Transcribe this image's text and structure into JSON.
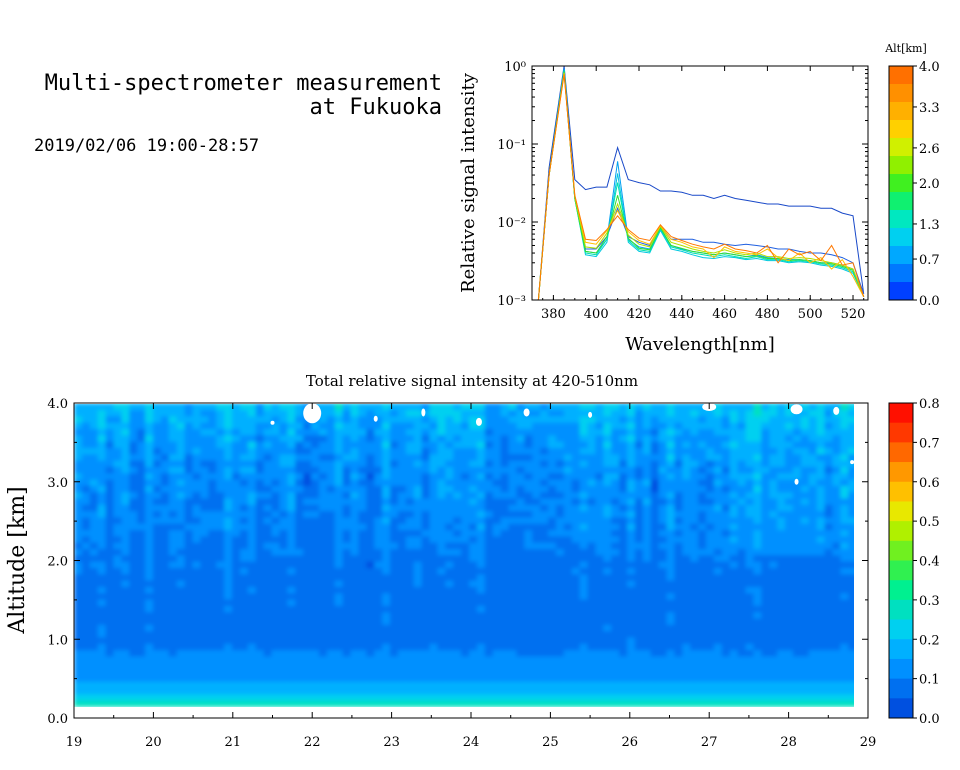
{
  "header": {
    "title_line1": "Multi-spectrometer measurement",
    "title_line2": "at Fukuoka",
    "timestamp": "2019/02/06 19:00-28:57"
  },
  "chart_data": [
    {
      "type": "line",
      "title": "",
      "xlabel": "Wavelength[nm]",
      "ylabel": "Relative signal intensity",
      "xlim": [
        370,
        527
      ],
      "ylim": [
        0.001,
        1
      ],
      "yscale": "log",
      "x_ticks": [
        "380",
        "400",
        "420",
        "440",
        "460",
        "480",
        "500",
        "520"
      ],
      "y_ticks": [
        "10⁰",
        "10⁻¹",
        "10⁻²",
        "10⁻³"
      ],
      "y_tick_values": [
        1,
        0.1,
        0.01,
        0.001
      ],
      "x": [
        373,
        378,
        385,
        390,
        395,
        400,
        405,
        410,
        415,
        420,
        425,
        430,
        435,
        440,
        445,
        450,
        455,
        460,
        465,
        470,
        475,
        480,
        485,
        490,
        495,
        500,
        505,
        510,
        515,
        520,
        525
      ],
      "colorbar": {
        "label": "Alt[km]",
        "ticks": [
          "4.0",
          "3.3",
          "2.6",
          "2.0",
          "1.3",
          "0.7",
          "0.0"
        ],
        "tick_values": [
          4.0,
          3.3,
          2.6,
          2.0,
          1.3,
          0.7,
          0.0
        ],
        "range": [
          0,
          4
        ],
        "colors": [
          "#0040ff",
          "#0078ff",
          "#00a8ff",
          "#00d0f0",
          "#00e8c0",
          "#10f070",
          "#40f020",
          "#90f000",
          "#d0f000",
          "#ffd000",
          "#ffb000",
          "#ff9000",
          "#ff7000"
        ]
      },
      "series": [
        {
          "altitude": 0.0,
          "color": "#1848c8",
          "values": [
            0.001,
            0.05,
            1.0,
            0.035,
            0.026,
            0.028,
            0.028,
            0.09,
            0.035,
            0.032,
            0.03,
            0.025,
            0.025,
            0.024,
            0.022,
            0.022,
            0.02,
            0.022,
            0.02,
            0.019,
            0.018,
            0.017,
            0.017,
            0.016,
            0.016,
            0.016,
            0.015,
            0.015,
            0.013,
            0.012,
            0.0012
          ]
        },
        {
          "altitude": 0.3,
          "color": "#2060e0",
          "values": [
            0.001,
            0.04,
            0.95,
            0.02,
            0.0045,
            0.0045,
            0.0065,
            0.015,
            0.0065,
            0.0055,
            0.005,
            0.009,
            0.006,
            0.006,
            0.006,
            0.0055,
            0.0055,
            0.0052,
            0.005,
            0.0052,
            0.005,
            0.0048,
            0.0045,
            0.0045,
            0.0042,
            0.004,
            0.004,
            0.0038,
            0.0035,
            0.003,
            0.0012
          ]
        },
        {
          "altitude": 0.7,
          "color": "#00a0f0",
          "values": [
            0.001,
            0.04,
            0.92,
            0.021,
            0.0042,
            0.004,
            0.006,
            0.06,
            0.006,
            0.0048,
            0.0045,
            0.008,
            0.005,
            0.0045,
            0.0042,
            0.004,
            0.0038,
            0.004,
            0.0038,
            0.0036,
            0.0038,
            0.0035,
            0.0034,
            0.0033,
            0.0033,
            0.0032,
            0.003,
            0.003,
            0.0028,
            0.0025,
            0.0011
          ]
        },
        {
          "altitude": 1.0,
          "color": "#00c8e0",
          "values": [
            0.001,
            0.04,
            0.9,
            0.02,
            0.0038,
            0.0036,
            0.0055,
            0.042,
            0.0055,
            0.0042,
            0.004,
            0.0078,
            0.0045,
            0.0042,
            0.0038,
            0.0035,
            0.0034,
            0.0036,
            0.0035,
            0.0033,
            0.0034,
            0.0032,
            0.0032,
            0.003,
            0.0031,
            0.003,
            0.0028,
            0.0027,
            0.0025,
            0.0022,
            0.0011
          ]
        },
        {
          "altitude": 1.3,
          "color": "#00e0b0",
          "values": [
            0.001,
            0.04,
            0.88,
            0.02,
            0.004,
            0.0038,
            0.006,
            0.032,
            0.0058,
            0.0044,
            0.0042,
            0.0082,
            0.0048,
            0.0044,
            0.004,
            0.0038,
            0.0036,
            0.0038,
            0.0036,
            0.0034,
            0.0036,
            0.0033,
            0.0033,
            0.0031,
            0.0032,
            0.0031,
            0.0029,
            0.0028,
            0.0026,
            0.0023,
            0.0011
          ]
        },
        {
          "altitude": 2.0,
          "color": "#30e030",
          "values": [
            0.001,
            0.04,
            0.85,
            0.02,
            0.0042,
            0.004,
            0.0065,
            0.022,
            0.0062,
            0.0046,
            0.0044,
            0.0085,
            0.005,
            0.0046,
            0.0042,
            0.004,
            0.0038,
            0.004,
            0.0038,
            0.0036,
            0.0037,
            0.0034,
            0.0034,
            0.0032,
            0.0033,
            0.0032,
            0.003,
            0.0029,
            0.0027,
            0.0024,
            0.0011
          ]
        },
        {
          "altitude": 2.6,
          "color": "#b0e000",
          "values": [
            0.001,
            0.04,
            0.82,
            0.021,
            0.0048,
            0.0046,
            0.0072,
            0.017,
            0.0068,
            0.0052,
            0.0048,
            0.0088,
            0.0055,
            0.005,
            0.0045,
            0.0042,
            0.004,
            0.0044,
            0.004,
            0.0038,
            0.004,
            0.0036,
            0.0036,
            0.0034,
            0.0035,
            0.0034,
            0.0032,
            0.003,
            0.0028,
            0.0025,
            0.0011
          ]
        },
        {
          "altitude": 3.3,
          "color": "#ffc000",
          "values": [
            0.001,
            0.04,
            0.8,
            0.022,
            0.0055,
            0.0052,
            0.0078,
            0.014,
            0.0075,
            0.0058,
            0.0052,
            0.009,
            0.006,
            0.0055,
            0.0048,
            0.0045,
            0.0035,
            0.0048,
            0.0042,
            0.004,
            0.0038,
            0.0045,
            0.0035,
            0.0032,
            0.004,
            0.003,
            0.0035,
            0.0025,
            0.0033,
            0.002,
            0.0011
          ]
        },
        {
          "altitude": 4.0,
          "color": "#ff7800",
          "values": [
            0.001,
            0.04,
            0.78,
            0.022,
            0.006,
            0.0058,
            0.008,
            0.012,
            0.008,
            0.0062,
            0.0058,
            0.0092,
            0.0065,
            0.0058,
            0.0052,
            0.0048,
            0.0045,
            0.0052,
            0.0045,
            0.0043,
            0.004,
            0.005,
            0.003,
            0.0045,
            0.0038,
            0.0042,
            0.0032,
            0.005,
            0.0028,
            0.003,
            0.0011
          ]
        }
      ]
    },
    {
      "type": "heatmap",
      "title": "Total relative signal intensity at 420-510nm",
      "xlabel": "",
      "ylabel": "Altitude [km]",
      "xlim": [
        19,
        29
      ],
      "ylim": [
        0,
        4
      ],
      "x_ticks": [
        "19",
        "20",
        "21",
        "22",
        "23",
        "24",
        "25",
        "26",
        "27",
        "28",
        "29"
      ],
      "y_ticks": [
        "0.0",
        "1.0",
        "2.0",
        "3.0",
        "4.0"
      ],
      "y_tick_values": [
        0,
        1,
        2,
        3,
        4
      ],
      "data_time_range": [
        19.0,
        28.95
      ],
      "data_altitude_range": [
        0.15,
        4.0
      ],
      "colorbar": {
        "ticks": [
          "0.8",
          "0.7",
          "0.6",
          "0.5",
          "0.4",
          "0.3",
          "0.2",
          "0.1",
          "0.0"
        ],
        "tick_values": [
          0.8,
          0.7,
          0.6,
          0.5,
          0.4,
          0.3,
          0.2,
          0.1,
          0.0
        ],
        "range": [
          0,
          0.8
        ],
        "colors": [
          "#0050e0",
          "#0070f0",
          "#0090ff",
          "#00b0ff",
          "#00d0f0",
          "#00e0c0",
          "#00f090",
          "#30f050",
          "#70f020",
          "#b0f000",
          "#e8e800",
          "#ffc000",
          "#ff9800",
          "#ff6800",
          "#ff3800",
          "#ff1000"
        ]
      },
      "altitude_profile": {
        "altitude": [
          0.15,
          0.2,
          0.3,
          0.5,
          0.7,
          1.0,
          1.5,
          2.0,
          2.5,
          3.0,
          3.5,
          4.0
        ],
        "value": [
          0.33,
          0.26,
          0.2,
          0.14,
          0.11,
          0.09,
          0.08,
          0.09,
          0.11,
          0.12,
          0.14,
          0.19
        ]
      }
    }
  ]
}
